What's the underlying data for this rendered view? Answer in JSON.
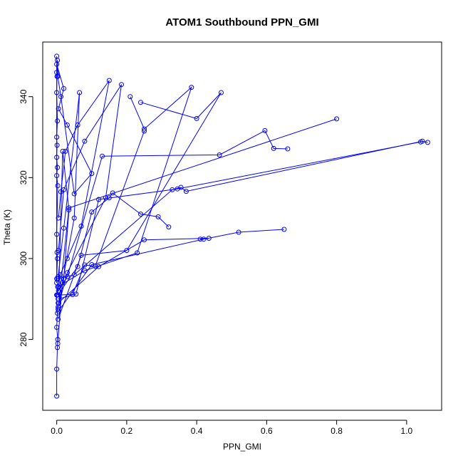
{
  "chart_data": {
    "type": "scatter",
    "title": "ATOM1 Southbound PPN_GMI",
    "xlabel": "PPN_GMI",
    "ylabel": "Theta (K)",
    "xlim": [
      -0.04,
      1.1
    ],
    "ylim": [
      262.5,
      353.5
    ],
    "xticks": [
      0.0,
      0.2,
      0.4,
      0.6,
      0.8,
      1.0
    ],
    "xtick_labels": [
      "0.0",
      "0.2",
      "0.4",
      "0.6",
      "0.8",
      "1.0"
    ],
    "yticks": [
      280,
      300,
      320,
      340
    ],
    "ytick_labels": [
      "280",
      "300",
      "320",
      "340"
    ],
    "grid": false,
    "marker": "open-circle",
    "color": "#0000ff",
    "series": [
      {
        "x": [
          0.0,
          0.0,
          0.002,
          0.003,
          0.0,
          0.002,
          0.0,
          0.003,
          0.0,
          0.002,
          0.001,
          0.0,
          0.003,
          0.0,
          0.002,
          0.0,
          0.001,
          0.0,
          0.002,
          0.0,
          0.001,
          0.0
        ],
        "y": [
          266,
          272.7,
          278,
          280,
          283,
          286.5,
          291,
          293,
          295,
          300,
          301.5,
          306,
          318,
          320.5,
          322.5,
          325,
          328,
          330,
          334,
          341,
          345,
          350
        ]
      },
      {
        "x": [
          0.0,
          0.0,
          0.02,
          0.005,
          0.03,
          0.1,
          0.05,
          0.012,
          0.003,
          0.002,
          0.0
        ],
        "y": [
          294,
          348,
          342,
          337,
          333,
          321,
          316,
          340,
          345,
          349,
          346
        ]
      },
      {
        "x": [
          0.002,
          0.01,
          0.03,
          0.07,
          0.15,
          0.06,
          0.025,
          0.012,
          0.005
        ],
        "y": [
          291,
          296,
          300,
          308,
          344,
          333,
          326.5,
          316.5,
          310
        ]
      },
      {
        "x": [
          0.004,
          0.03,
          0.14,
          0.185,
          0.08,
          0.02,
          0.005
        ],
        "y": [
          288,
          296.5,
          315,
          343,
          329,
          317,
          302
        ]
      },
      {
        "x": [
          0.003,
          0.016,
          0.05,
          0.065,
          0.02,
          0.004
        ],
        "y": [
          279,
          294,
          310,
          341,
          307.5,
          295.5
        ]
      },
      {
        "x": [
          0.006,
          0.02,
          0.035,
          0.017,
          0.006
        ],
        "y": [
          289,
          295,
          312,
          326.5,
          293
        ]
      },
      {
        "x": [
          0.005,
          0.03,
          0.13,
          0.465,
          0.595,
          0.62,
          0.66
        ],
        "y": [
          292,
          295.5,
          325.3,
          325.6,
          331.6,
          327.2,
          327.1
        ]
      },
      {
        "x": [
          0.005,
          0.1,
          0.42,
          0.52,
          0.65
        ],
        "y": [
          287,
          298.5,
          304.8,
          306.5,
          307.2
        ]
      },
      {
        "x": [
          0.004,
          0.12,
          0.25,
          0.435,
          0.41
        ],
        "y": [
          289,
          298,
          304.6,
          305.0,
          304.8
        ]
      },
      {
        "x": [
          0.003,
          0.08,
          0.23,
          0.385,
          0.25,
          0.21
        ],
        "y": [
          293,
          297,
          301.4,
          342.3,
          332,
          340
        ]
      },
      {
        "x": [
          0.004,
          0.07,
          0.2,
          0.47,
          0.4,
          0.24
        ],
        "y": [
          285,
          300.8,
          302,
          341,
          334.6,
          338.6
        ]
      },
      {
        "x": [
          0.004,
          0.035,
          0.8
        ],
        "y": [
          287.5,
          312.5,
          334.5
        ]
      },
      {
        "x": [
          0.003,
          0.06,
          0.1,
          0.15,
          0.16,
          0.24,
          0.29,
          0.32
        ],
        "y": [
          291,
          298,
          311.5,
          315,
          316.2,
          311,
          310.3,
          307.8
        ]
      },
      {
        "x": [
          0.003,
          0.05,
          0.33,
          0.355,
          0.37,
          1.045,
          1.06
        ],
        "y": [
          295,
          296,
          317,
          317.6,
          316.6,
          329,
          328.7
        ]
      },
      {
        "x": [
          0.004,
          0.055,
          0.12,
          0.345,
          1.04
        ],
        "y": [
          290,
          291.2,
          314.6,
          317.2,
          328.8
        ]
      },
      {
        "x": [
          0.002,
          0.045,
          0.08,
          0.11,
          0.25
        ],
        "y": [
          291,
          291.1,
          298.4,
          298.1,
          331.5
        ]
      }
    ]
  }
}
